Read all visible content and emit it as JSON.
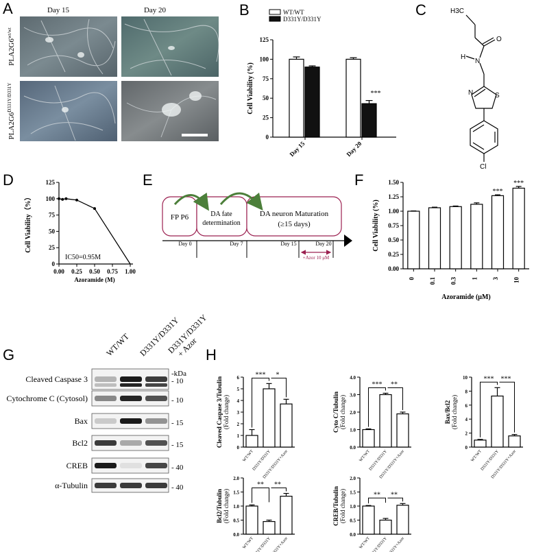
{
  "panels": {
    "A": {
      "letter": "A",
      "day15": "Day 15",
      "day20": "Day 20",
      "row1_label_base": "PLA2G6",
      "row1_label_sup": "wt/wt",
      "row2_label_base": "PLA2G6",
      "row2_label_sup": "D331Y/D331Y"
    },
    "B": {
      "letter": "B",
      "chart_data": {
        "type": "bar",
        "categories": [
          "Day 15",
          "Day 20"
        ],
        "series": [
          {
            "name": "WT/WT",
            "values": [
              100,
              100
            ],
            "errors": [
              3,
              2
            ],
            "color": "#ffffff"
          },
          {
            "name": "D331Y/D331Y",
            "values": [
              90,
              43
            ],
            "errors": [
              1.5,
              4
            ],
            "color": "#111111"
          }
        ],
        "ylabel": "Cell Viability (%)",
        "ylim": [
          0,
          125
        ],
        "yticks": [
          "0",
          "25",
          "50",
          "75",
          "100",
          "125"
        ],
        "annotations": [
          "***"
        ]
      }
    },
    "C": {
      "letter": "C",
      "atoms": [
        "H3C",
        "H",
        "N",
        "O",
        "N",
        "S",
        "Cl"
      ]
    },
    "D": {
      "letter": "D",
      "chart_data": {
        "type": "line",
        "x": [
          0,
          0.05,
          0.1,
          0.25,
          0.5,
          1.0
        ],
        "y": [
          100,
          99,
          100,
          98,
          85,
          0
        ],
        "xlabel": "Azoramide (M)",
        "ylabel": "Cell Viability（%）",
        "xlim": [
          0,
          1.0
        ],
        "ylim": [
          0,
          125
        ],
        "xticks": [
          "0.00",
          "0.25",
          "0.50",
          "0.75",
          "1.00"
        ],
        "yticks": [
          "0",
          "25",
          "50",
          "75",
          "100",
          "125"
        ],
        "annotation": "IC50=0.95M"
      }
    },
    "E": {
      "letter": "E",
      "box1": "FP P6",
      "box2_l1": "DA fate",
      "box2_l2": "determination",
      "box3_l1": "DA neuron Maturation",
      "box3_l2": "(≥15 days)",
      "t0": "Day 0",
      "t7": "Day 7",
      "t15": "Day 15",
      "t20": "Day 20",
      "azor": "+Azor 10 μM"
    },
    "F": {
      "letter": "F",
      "chart_data": {
        "type": "bar",
        "categories": [
          "0",
          "0.1",
          "0.3",
          "1",
          "3",
          "10"
        ],
        "values": [
          1.0,
          1.06,
          1.08,
          1.12,
          1.27,
          1.4
        ],
        "errors": [
          0.005,
          0.01,
          0.01,
          0.025,
          0.015,
          0.03
        ],
        "ylabel": "Cell Viability (%)",
        "xlabel": "Azoramide (μM)",
        "ylim": [
          0,
          1.5
        ],
        "yticks": [
          "0.00",
          "0.25",
          "0.50",
          "0.75",
          "1.00",
          "1.25",
          "1.50"
        ],
        "annotations": [
          "***",
          "***"
        ]
      }
    },
    "G": {
      "letter": "G",
      "lanes": [
        "WT/WT",
        "D331Y/D331Y",
        "D331Y/D331Y",
        "+ Azor"
      ],
      "kda": "-kDa",
      "rows": [
        {
          "label": "Cleaved Caspase 3",
          "marker": "10"
        },
        {
          "label": "Cytochrome C (Cytosol)",
          "marker": "10"
        },
        {
          "label": "Bax",
          "marker": "15"
        },
        {
          "label": "Bcl2",
          "marker": "15"
        },
        {
          "label": "CREB",
          "marker": "40"
        },
        {
          "label": "α-Tubulin",
          "marker": "40"
        }
      ]
    },
    "H": {
      "letter": "H",
      "chart_data": [
        {
          "type": "bar",
          "ylabel_l1": "Cleaved Caspase 3/Tubulin",
          "ylabel_l2": "(Fold change)",
          "categories": [
            "WT/WT",
            "D331Y/D331Y",
            "D331Y/D331Y+Azor"
          ],
          "values": [
            1.0,
            5.0,
            3.7
          ],
          "errors": [
            0.5,
            0.45,
            0.4
          ],
          "ylim": [
            0,
            6
          ],
          "yticks": [
            "0",
            "1",
            "2",
            "3",
            "4",
            "5",
            "6"
          ],
          "sig": [
            "***",
            "*"
          ]
        },
        {
          "type": "bar",
          "ylabel_l1": "Cyto C/Tubulin",
          "ylabel_l2": "(Fold change)",
          "categories": [
            "WT/WT",
            "D331Y/D331Y",
            "D331Y/D331Y+Azor"
          ],
          "values": [
            1.0,
            3.0,
            1.9
          ],
          "errors": [
            0.04,
            0.08,
            0.1
          ],
          "ylim": [
            0,
            4
          ],
          "yticks": [
            "0.0",
            "1.0",
            "2.0",
            "3.0",
            "4.0"
          ],
          "sig": [
            "***",
            "**"
          ]
        },
        {
          "type": "bar",
          "ylabel_l1": "Bax/Bcl2",
          "ylabel_l2": "(Fold change)",
          "categories": [
            "WT/WT",
            "D331Y/D331Y",
            "D331Y/D331Y+Azor"
          ],
          "values": [
            1.0,
            7.3,
            1.6
          ],
          "errors": [
            0.1,
            1.2,
            0.2
          ],
          "ylim": [
            0,
            10
          ],
          "yticks": [
            "0",
            "2",
            "4",
            "6",
            "8",
            "10"
          ],
          "sig": [
            "***",
            "***"
          ]
        },
        {
          "type": "bar",
          "ylabel_l1": "Bcl2/Tubulin",
          "ylabel_l2": "(Fold change)",
          "categories": [
            "WT/WT",
            "D331Y/D331Y",
            "D331Y/D331Y+Azor"
          ],
          "values": [
            1.0,
            0.45,
            1.35
          ],
          "errors": [
            0.04,
            0.05,
            0.1
          ],
          "ylim": [
            0,
            2.0
          ],
          "yticks": [
            "0.0",
            "0.5",
            "1.0",
            "1.5",
            "2.0"
          ],
          "sig": [
            "**",
            "**"
          ]
        },
        {
          "type": "bar",
          "ylabel_l1": "CREB/Tubulin",
          "ylabel_l2": "(Fold change)",
          "categories": [
            "WT/WT",
            "D331Y/D331Y",
            "D331Y/D331Y+Azor"
          ],
          "values": [
            1.0,
            0.5,
            1.03
          ],
          "errors": [
            0.02,
            0.06,
            0.06
          ],
          "ylim": [
            0,
            2.0
          ],
          "yticks": [
            "0.0",
            "0.5",
            "1.0",
            "1.5",
            "2.0"
          ],
          "sig": [
            "**",
            "**"
          ]
        }
      ]
    }
  }
}
